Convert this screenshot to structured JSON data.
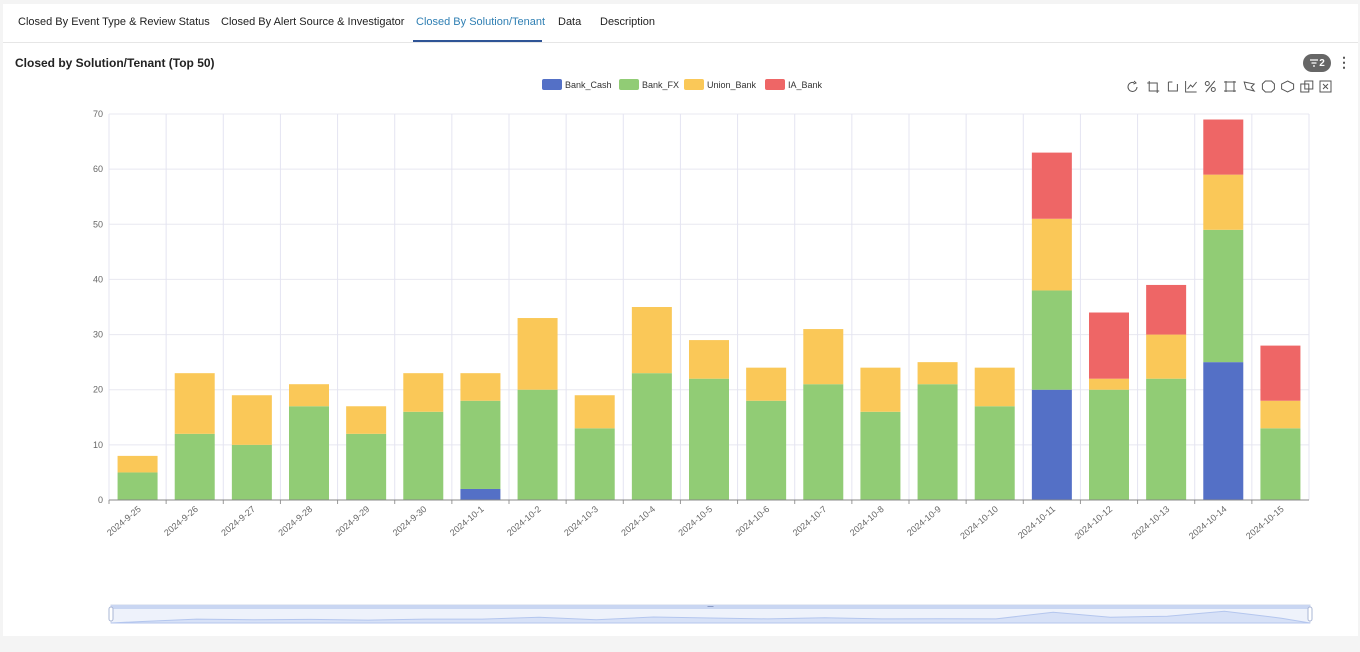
{
  "tabs": [
    {
      "label": "Closed By Event Type & Review Status",
      "active": false
    },
    {
      "label": "Closed By Alert Source & Investigator",
      "active": false
    },
    {
      "label": "Closed By Solution/Tenant",
      "active": true
    },
    {
      "label": "Data",
      "active": false
    },
    {
      "label": "Description",
      "active": false
    }
  ],
  "filter_count": "2",
  "toolbox_icons": [
    "restore-icon",
    "crop-icon",
    "crop-back-icon",
    "line-chart-icon",
    "percent-icon",
    "select-rect-icon",
    "lasso-icon",
    "zoom-in-icon",
    "zoom-out-icon",
    "copy-icon",
    "close-box-icon"
  ],
  "chart_data": {
    "type": "bar",
    "stacked": true,
    "title": "Closed by Solution/Tenant (Top 50)",
    "legend_position": "top-center",
    "grid": true,
    "ylim": [
      0,
      70
    ],
    "yticks": [
      0,
      10,
      20,
      30,
      40,
      50,
      60,
      70
    ],
    "categories": [
      "2024-9-25",
      "2024-9-26",
      "2024-9-27",
      "2024-9-28",
      "2024-9-29",
      "2024-9-30",
      "2024-10-1",
      "2024-10-2",
      "2024-10-3",
      "2024-10-4",
      "2024-10-5",
      "2024-10-6",
      "2024-10-7",
      "2024-10-8",
      "2024-10-9",
      "2024-10-10",
      "2024-10-11",
      "2024-10-12",
      "2024-10-13",
      "2024-10-14",
      "2024-10-15"
    ],
    "series": [
      {
        "name": "Bank_Cash",
        "color": "#5470c6",
        "values": [
          0,
          0,
          0,
          0,
          0,
          0,
          2,
          0,
          0,
          0,
          0,
          0,
          0,
          0,
          0,
          0,
          20,
          0,
          0,
          25,
          0
        ]
      },
      {
        "name": "Bank_FX",
        "color": "#91cc75",
        "values": [
          5,
          12,
          10,
          17,
          12,
          16,
          16,
          20,
          13,
          23,
          22,
          18,
          21,
          16,
          21,
          17,
          18,
          20,
          22,
          24,
          13
        ]
      },
      {
        "name": "Union_Bank",
        "color": "#fac858",
        "values": [
          3,
          11,
          9,
          4,
          5,
          7,
          5,
          13,
          6,
          12,
          7,
          6,
          10,
          8,
          4,
          7,
          13,
          2,
          8,
          10,
          5
        ]
      },
      {
        "name": "IA_Bank",
        "color": "#ee6666",
        "values": [
          0,
          0,
          0,
          0,
          0,
          0,
          0,
          0,
          0,
          0,
          0,
          0,
          0,
          0,
          0,
          0,
          12,
          12,
          9,
          10,
          10
        ]
      }
    ]
  }
}
